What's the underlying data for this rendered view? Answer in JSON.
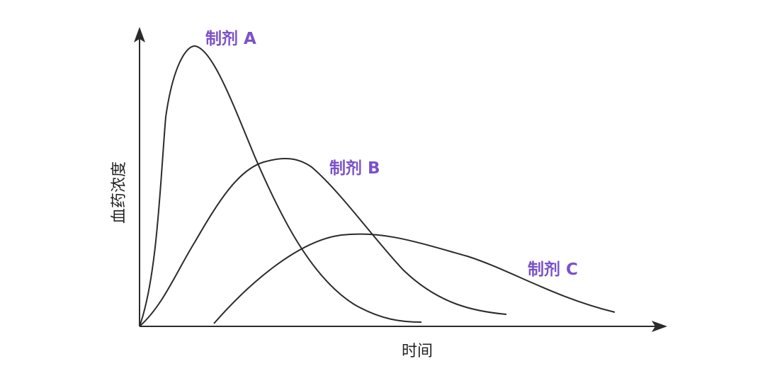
{
  "curves": [
    {
      "label": "制剂 A"
    },
    {
      "label": "制剂 B"
    },
    {
      "label": "制剂 C"
    }
  ],
  "y_axis": {
    "label": "血药浓度"
  },
  "x_axis": {
    "label": "时间"
  }
}
